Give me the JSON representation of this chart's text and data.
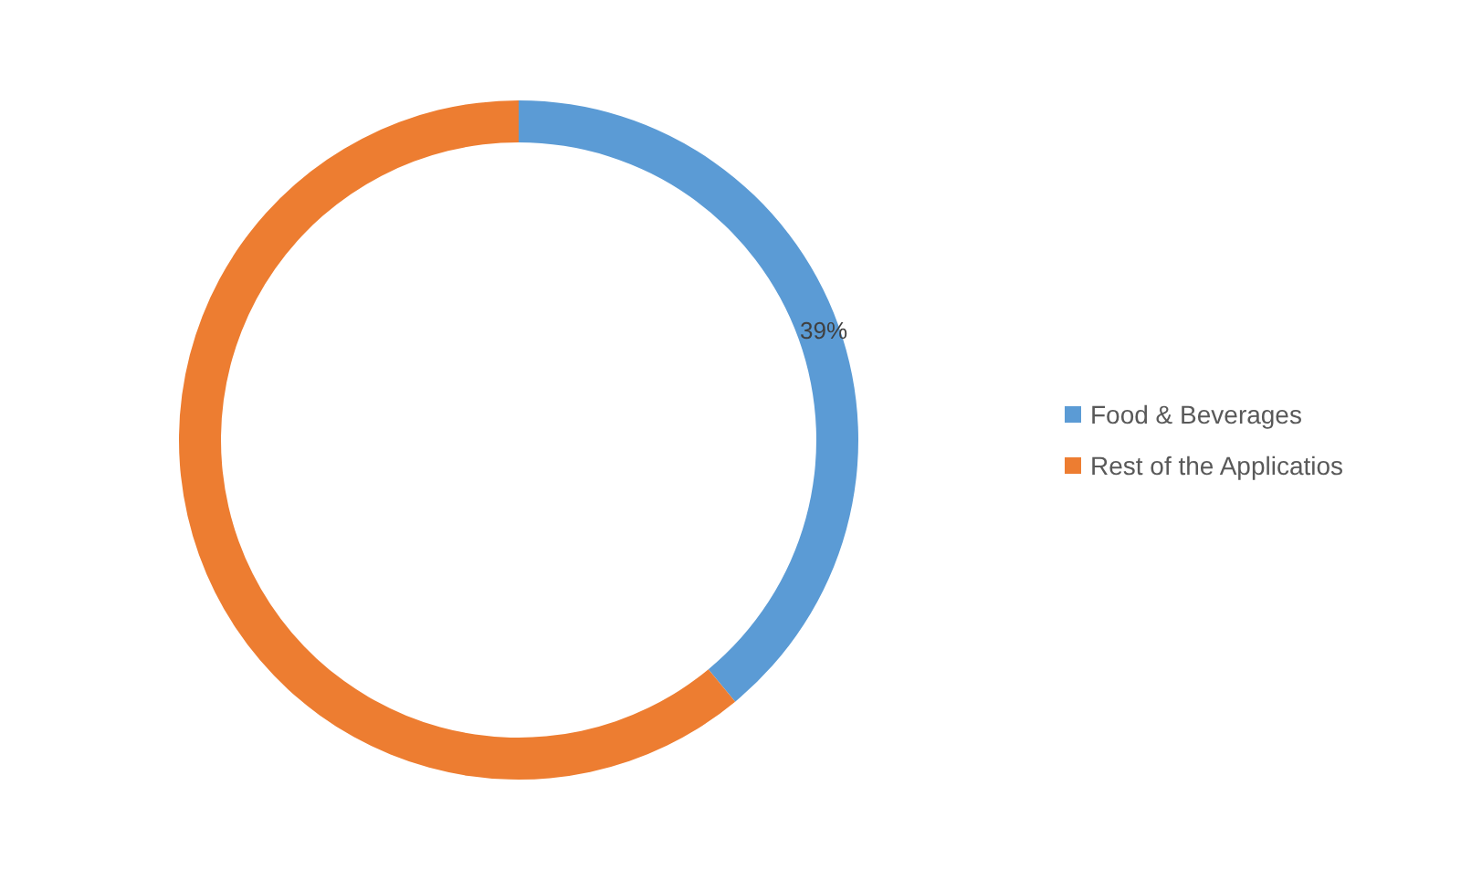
{
  "chart_data": {
    "type": "donut",
    "categories": [
      "Food & Beverages",
      "Rest of the Applicatios"
    ],
    "values": [
      39,
      61
    ],
    "colors": [
      "#5b9bd5",
      "#ed7d31"
    ],
    "value_labels": [
      "39%",
      null
    ],
    "legend": "right"
  }
}
